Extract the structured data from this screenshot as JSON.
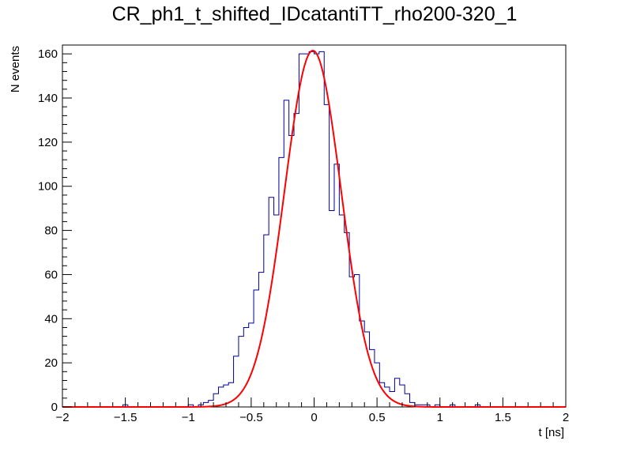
{
  "chart_data": {
    "type": "histogram",
    "title": "CR_ph1_t_shifted_IDcatantiTT_rho200-320_1",
    "xlabel": "t [ns]",
    "ylabel": "N events",
    "xlim": [
      -2,
      2
    ],
    "ylim": [
      0,
      164
    ],
    "x_ticks": [
      "−2",
      "−1.5",
      "−1",
      "−0.5",
      "0",
      "0.5",
      "1",
      "1.5",
      "2"
    ],
    "y_ticks": [
      "0",
      "20",
      "40",
      "60",
      "80",
      "100",
      "120",
      "140",
      "160"
    ],
    "bin_width": 0.04,
    "histogram": {
      "bin_lo": [
        -1.52,
        -1.0,
        -0.96,
        -0.92,
        -0.88,
        -0.84,
        -0.8,
        -0.76,
        -0.72,
        -0.68,
        -0.64,
        -0.6,
        -0.56,
        -0.52,
        -0.48,
        -0.44,
        -0.4,
        -0.36,
        -0.32,
        -0.28,
        -0.24,
        -0.2,
        -0.16,
        -0.12,
        -0.08,
        -0.04,
        0.0,
        0.04,
        0.08,
        0.12,
        0.16,
        0.2,
        0.24,
        0.28,
        0.32,
        0.36,
        0.4,
        0.44,
        0.48,
        0.52,
        0.56,
        0.6,
        0.64,
        0.68,
        0.72,
        0.76,
        0.8,
        0.84,
        0.88,
        0.96,
        1.08,
        1.28
      ],
      "counts": [
        1,
        1,
        0,
        1,
        2,
        3,
        6,
        9,
        10,
        11,
        23,
        32,
        36,
        38,
        53,
        61,
        78,
        95,
        87,
        113,
        139,
        123,
        133,
        160,
        160,
        161,
        160,
        161,
        137,
        89,
        110,
        87,
        79,
        59,
        60,
        39,
        34,
        26,
        20,
        11,
        9,
        7,
        13,
        10,
        6,
        2,
        1,
        1,
        1,
        1,
        1,
        1
      ]
    },
    "fit": {
      "function": "gaussian",
      "amplitude": 161.5,
      "mean": -0.01,
      "sigma": 0.225,
      "color": "#ff0000"
    },
    "histogram_color": "#000099",
    "grid": false
  }
}
